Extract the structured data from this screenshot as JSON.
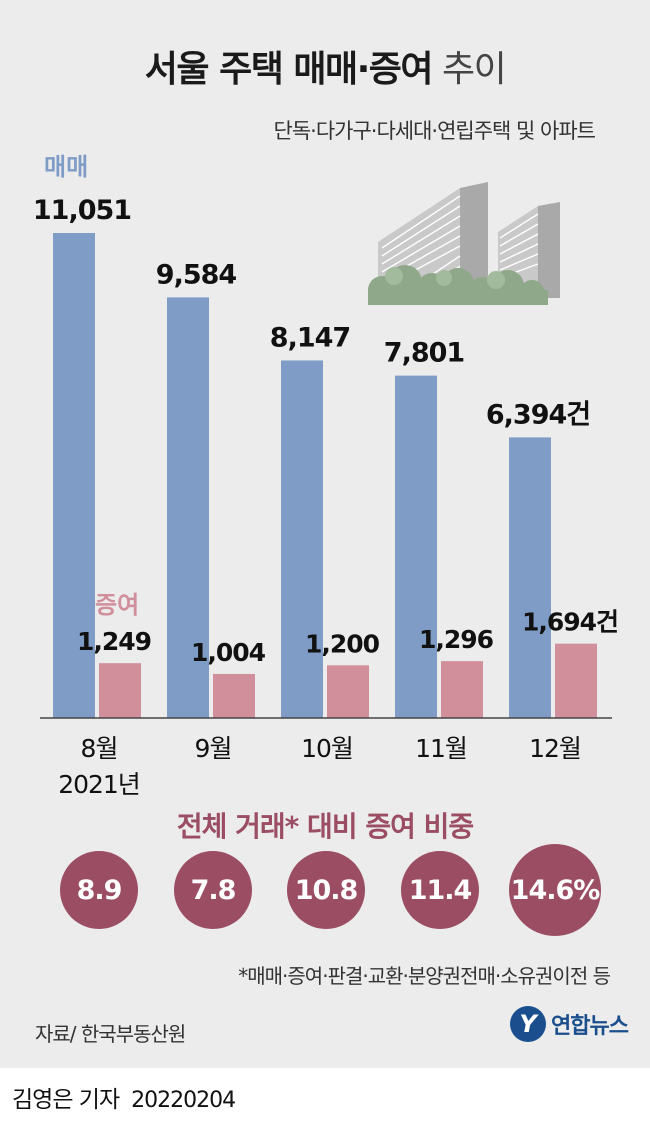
{
  "title_main": "서울 주택 매매·증여",
  "title_suffix": "추이",
  "subtitle": "단독·다가구·다세대·연립주택 및 아파트",
  "chart_data": {
    "type": "bar",
    "categories": [
      "8월",
      "9월",
      "10월",
      "11월",
      "12월"
    ],
    "year_label": "2021년",
    "unit": "건",
    "series": [
      {
        "name": "매매",
        "values": [
          11051,
          9584,
          8147,
          7801,
          6394
        ],
        "color": "#7f9cc6"
      },
      {
        "name": "증여",
        "values": [
          1249,
          1004,
          1200,
          1296,
          1694
        ],
        "color": "#d08f9b"
      }
    ]
  },
  "ratio": {
    "title": "전체 거래* 대비 증여 비중",
    "values": [
      "8.9",
      "7.8",
      "10.8",
      "11.4",
      "14.6%"
    ],
    "color": "#9a4d63"
  },
  "footnote": "*매매·증여·판결·교환·분양권전매·소유권이전 등",
  "source": "자료/ 한국부동산원",
  "logo": {
    "mark": "Y",
    "name": "연합뉴스",
    "color": "#1b4e8c"
  },
  "byline": {
    "reporter": "김영은 기자",
    "date": "20220204"
  }
}
